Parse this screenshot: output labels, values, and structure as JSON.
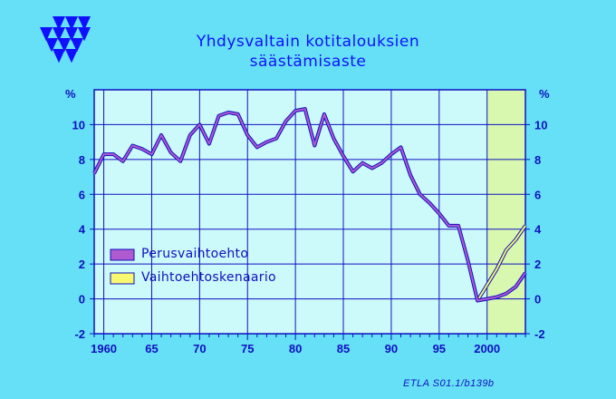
{
  "title_line1": "Yhdysvaltain  kotitalouksien",
  "title_line2": "säästämisaste",
  "source": "ETLA S01.1/b139b",
  "unit_left": "%",
  "unit_right": "%",
  "colors": {
    "background": "#66e0f7",
    "plot_bg": "#ccfafa",
    "forecast_bg": "#d8f8b0",
    "axis": "#1010c0",
    "series_base": "#b05ad0",
    "series_alt": "#f8f870",
    "logo": "#1010ff"
  },
  "chart_data": {
    "type": "line",
    "title": "Yhdysvaltain  kotitalouksien säästämisaste",
    "ylabel": "%",
    "xlim": [
      1959,
      2004
    ],
    "ylim": [
      -2,
      12
    ],
    "x_ticks": [
      1960,
      1965,
      1970,
      1975,
      1980,
      1985,
      1990,
      1995,
      2000
    ],
    "x_tick_labels": [
      "1960",
      "65",
      "70",
      "75",
      "80",
      "85",
      "90",
      "95",
      "2000"
    ],
    "y_ticks": [
      -2,
      0,
      2,
      4,
      6,
      8,
      10
    ],
    "y_tick_labels": [
      "-2",
      "0",
      "2",
      "4",
      "6",
      "8",
      "10"
    ],
    "grid": true,
    "forecast_region": [
      2000,
      2004
    ],
    "legend_position": "lower-left",
    "series": [
      {
        "name": "Perusvaihtoehto",
        "x": [
          1959,
          1960,
          1961,
          1962,
          1963,
          1964,
          1965,
          1966,
          1967,
          1968,
          1969,
          1970,
          1971,
          1972,
          1973,
          1974,
          1975,
          1976,
          1977,
          1978,
          1979,
          1980,
          1981,
          1982,
          1983,
          1984,
          1985,
          1986,
          1987,
          1988,
          1989,
          1990,
          1991,
          1992,
          1993,
          1994,
          1995,
          1996,
          1997,
          1998,
          1999,
          2000,
          2001,
          2002,
          2003,
          2004
        ],
        "values": [
          7.2,
          8.3,
          8.3,
          7.9,
          8.8,
          8.6,
          8.3,
          9.4,
          8.4,
          7.9,
          9.4,
          10.0,
          8.9,
          10.5,
          10.7,
          10.6,
          9.4,
          8.7,
          9.0,
          9.2,
          10.2,
          10.8,
          10.9,
          8.8,
          10.6,
          9.2,
          8.2,
          7.3,
          7.8,
          7.5,
          7.8,
          8.3,
          8.7,
          7.1,
          6.0,
          5.5,
          4.9,
          4.2,
          4.2,
          2.2,
          -0.1,
          0.0,
          0.1,
          0.3,
          0.7,
          1.5
        ]
      },
      {
        "name": "Vaihtoehtoskenaario",
        "x": [
          1999,
          2000,
          2001,
          2002,
          2003,
          2004
        ],
        "values": [
          -0.1,
          0.8,
          1.7,
          2.8,
          3.4,
          4.2
        ]
      }
    ]
  }
}
